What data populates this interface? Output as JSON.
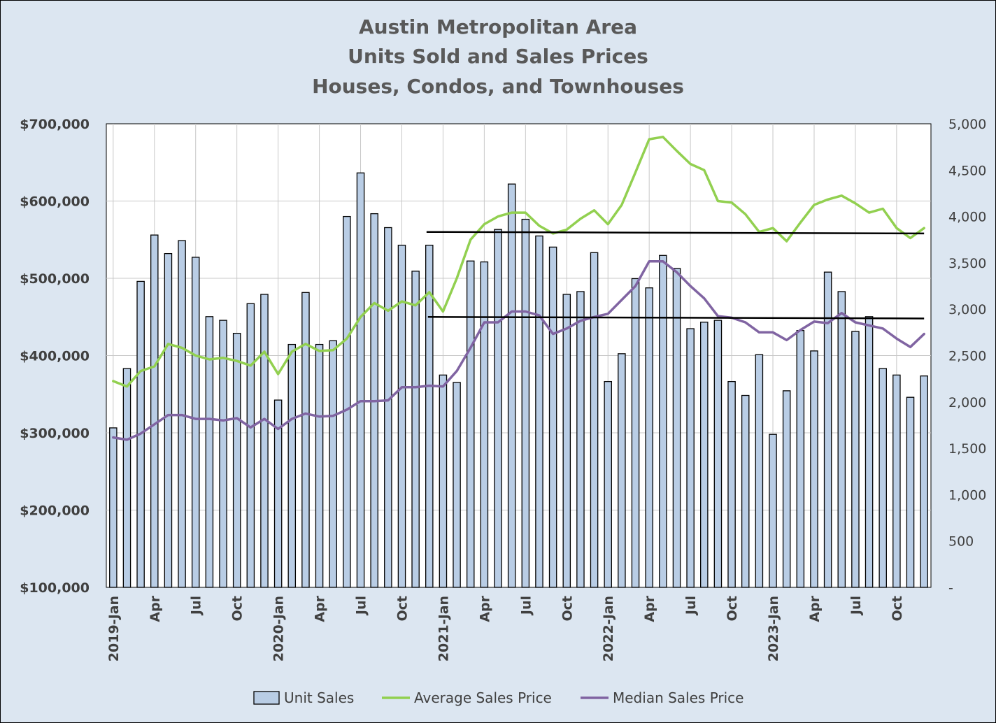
{
  "chart_data": {
    "type": "bar+line",
    "title": [
      "Austin Metropolitan Area",
      "Units Sold and Sales Prices",
      "Houses, Condos, and Townhouses"
    ],
    "left_axis": {
      "min": 100000,
      "max": 700000,
      "ticks": [
        "$100,000",
        "$200,000",
        "$300,000",
        "$400,000",
        "$500,000",
        "$600,000",
        "$700,000"
      ]
    },
    "right_axis": {
      "min": 0,
      "max": 5000,
      "ticks": [
        "-",
        "500",
        "1,000",
        "1,500",
        "2,000",
        "2,500",
        "3,000",
        "3,500",
        "4,000",
        "4,500",
        "5,000"
      ]
    },
    "x_labels": [
      {
        "i": 0,
        "label": "2019-Jan"
      },
      {
        "i": 3,
        "label": "Apr"
      },
      {
        "i": 6,
        "label": "Jul"
      },
      {
        "i": 9,
        "label": "Oct"
      },
      {
        "i": 12,
        "label": "2020-Jan"
      },
      {
        "i": 15,
        "label": "Apr"
      },
      {
        "i": 18,
        "label": "Jul"
      },
      {
        "i": 21,
        "label": "Oct"
      },
      {
        "i": 24,
        "label": "2021-Jan"
      },
      {
        "i": 27,
        "label": "Apr"
      },
      {
        "i": 30,
        "label": "Jul"
      },
      {
        "i": 33,
        "label": "Oct"
      },
      {
        "i": 36,
        "label": "2022-Jan"
      },
      {
        "i": 39,
        "label": "Apr"
      },
      {
        "i": 42,
        "label": "Jul"
      },
      {
        "i": 45,
        "label": "Oct"
      },
      {
        "i": 48,
        "label": "2023-Jan"
      },
      {
        "i": 51,
        "label": "Apr"
      },
      {
        "i": 54,
        "label": "Jul"
      },
      {
        "i": 57,
        "label": "Oct"
      }
    ],
    "series": [
      {
        "name": "Unit Sales",
        "type": "bar",
        "axis": "right",
        "color": "#b9cde5",
        "values": [
          1720,
          2360,
          3300,
          3800,
          3600,
          3740,
          3560,
          2920,
          2880,
          2740,
          3060,
          3160,
          2020,
          2620,
          3180,
          2620,
          2660,
          4000,
          4470,
          4030,
          3880,
          3690,
          3410,
          3690,
          2290,
          2210,
          3520,
          3510,
          3860,
          4350,
          3970,
          3790,
          3670,
          3160,
          3190,
          3610,
          2220,
          2520,
          3330,
          3230,
          3580,
          3440,
          2790,
          2860,
          2880,
          2220,
          2070,
          2510,
          1650,
          2120,
          2770,
          2550,
          3400,
          3190,
          2760,
          2920,
          2360,
          2290,
          2050,
          2280
        ]
      },
      {
        "name": "Average Sales Price",
        "type": "line",
        "axis": "left",
        "color": "#92d050",
        "values": [
          367000,
          360000,
          380000,
          386000,
          415000,
          410000,
          400000,
          395000,
          397000,
          393000,
          387000,
          405000,
          376000,
          405000,
          415000,
          406000,
          407000,
          422000,
          450000,
          468000,
          458000,
          470000,
          465000,
          482000,
          457000,
          500000,
          550000,
          570000,
          580000,
          585000,
          585000,
          568000,
          558000,
          563000,
          577000,
          588000,
          570000,
          595000,
          637000,
          680000,
          683000,
          665000,
          648000,
          640000,
          600000,
          598000,
          583000,
          560000,
          565000,
          548000,
          572000,
          595000,
          602000,
          607000,
          597000,
          585000,
          590000,
          565000,
          552000,
          565000
        ]
      },
      {
        "name": "Median Sales Price",
        "type": "line",
        "axis": "left",
        "color": "#8064a2",
        "values": [
          294000,
          291000,
          299000,
          311000,
          323000,
          323000,
          318000,
          318000,
          316000,
          319000,
          307000,
          318000,
          305000,
          318000,
          325000,
          321000,
          322000,
          330000,
          341000,
          341000,
          342000,
          359000,
          359000,
          361000,
          360000,
          380000,
          410000,
          443000,
          443000,
          457000,
          457000,
          452000,
          428000,
          435000,
          445000,
          450000,
          454000,
          472000,
          490000,
          522000,
          522000,
          508000,
          490000,
          474000,
          451000,
          449000,
          443000,
          430000,
          430000,
          420000,
          433000,
          444000,
          442000,
          455000,
          443000,
          439000,
          435000,
          422000,
          411000,
          428000
        ]
      },
      {
        "name": "Reference Line Upper",
        "type": "hline",
        "axis": "left",
        "color": "#000000",
        "from_i": 22.8,
        "to_i": 59,
        "from": 560000,
        "to": 558000
      },
      {
        "name": "Reference Line Lower",
        "type": "hline",
        "axis": "left",
        "color": "#000000",
        "from_i": 22.9,
        "to_i": 59,
        "from": 450000,
        "to": 448000
      }
    ],
    "legend": [
      "Unit Sales",
      "Average Sales Price",
      "Median Sales Price"
    ],
    "legend_position": "bottom"
  }
}
